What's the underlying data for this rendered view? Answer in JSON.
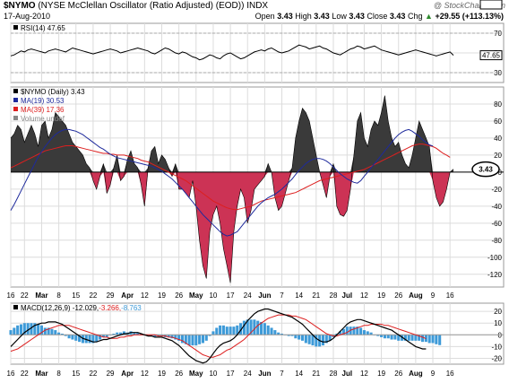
{
  "header": {
    "symbol": "$NYMO",
    "description": "(NYSE McClellan Oscillator (Ratio Adjusted) (EOD))",
    "exchange": "INDX",
    "watermark": "@ StockCharts.com",
    "date": "17-Aug-2010",
    "open_label": "Open",
    "open_value": "3.43",
    "high_label": "High",
    "high_value": "3.43",
    "low_label": "Low",
    "low_value": "3.43",
    "close_label": "Close",
    "close_value": "3.43",
    "chg_label": "Chg",
    "chg_value": "+29.55 (+113.13%)",
    "chg_arrow": "▲"
  },
  "colors": {
    "positive_fill": "#3a3a3a",
    "negative_fill": "#cc3355",
    "ma19": "#1e2a9c",
    "ma39": "#dd1f1f",
    "rsi_line": "#000000",
    "macd_line": "#000000",
    "signal_line": "#dd1f1f",
    "histogram": "#3d9ad8"
  },
  "x_axis": {
    "labels": [
      {
        "i": 0,
        "text": "16"
      },
      {
        "i": 4,
        "text": "22"
      },
      {
        "i": 9,
        "text": "Mar"
      },
      {
        "i": 14,
        "text": "8"
      },
      {
        "i": 19,
        "text": "15"
      },
      {
        "i": 24,
        "text": "22"
      },
      {
        "i": 29,
        "text": "29"
      },
      {
        "i": 34,
        "text": "Apr"
      },
      {
        "i": 39,
        "text": "12"
      },
      {
        "i": 44,
        "text": "19"
      },
      {
        "i": 49,
        "text": "26"
      },
      {
        "i": 54,
        "text": "May"
      },
      {
        "i": 59,
        "text": "10"
      },
      {
        "i": 64,
        "text": "17"
      },
      {
        "i": 69,
        "text": "24"
      },
      {
        "i": 74,
        "text": "Jun"
      },
      {
        "i": 79,
        "text": "7"
      },
      {
        "i": 84,
        "text": "14"
      },
      {
        "i": 89,
        "text": "21"
      },
      {
        "i": 94,
        "text": "28"
      },
      {
        "i": 98,
        "text": "Jul"
      },
      {
        "i": 103,
        "text": "12"
      },
      {
        "i": 108,
        "text": "19"
      },
      {
        "i": 113,
        "text": "26"
      },
      {
        "i": 118,
        "text": "Aug"
      },
      {
        "i": 123,
        "text": "9"
      },
      {
        "i": 128,
        "text": "16"
      }
    ]
  },
  "chart_data": [
    {
      "type": "line",
      "panel": "rsi",
      "legend": "RSI(14)",
      "legend_value": "47.65",
      "ylim": [
        20,
        80
      ],
      "yticks": [
        70,
        50,
        30
      ],
      "ytick_labels": [
        "70",
        "50",
        "30"
      ],
      "overbought": 70,
      "oversold": 30,
      "last_label": "47.65",
      "series": [
        {
          "name": "RSI(14)",
          "values": [
            47,
            48,
            50,
            52,
            51,
            53,
            54,
            53,
            52,
            51,
            50,
            52,
            53,
            54,
            53,
            52,
            51,
            53,
            55,
            54,
            53,
            52,
            51,
            50,
            49,
            50,
            51,
            52,
            53,
            54,
            53,
            52,
            50,
            51,
            52,
            53,
            54,
            55,
            54,
            53,
            52,
            50,
            49,
            51,
            53,
            55,
            54,
            52,
            50,
            49,
            51,
            50,
            48,
            46,
            45,
            43,
            44,
            46,
            48,
            47,
            45,
            44,
            47,
            49,
            50,
            48,
            46,
            44,
            45,
            47,
            49,
            51,
            52,
            53,
            52,
            54,
            55,
            53,
            51,
            50,
            51,
            52,
            54,
            56,
            58,
            57,
            56,
            54,
            55,
            56,
            57,
            55,
            54,
            52,
            50,
            49,
            48,
            50,
            52,
            54,
            55,
            57,
            56,
            54,
            55,
            56,
            57,
            55,
            53,
            52,
            51,
            50,
            49,
            48,
            49,
            50,
            51,
            52,
            53,
            52,
            51,
            50,
            49,
            48,
            47,
            48,
            49,
            50,
            51,
            47.65
          ]
        }
      ]
    },
    {
      "type": "area",
      "panel": "main",
      "legend": [
        "$NYMO (Daily)",
        "MA(19)",
        "MA(39)",
        "Volume undef"
      ],
      "legend_values": [
        "3.43",
        "30.53",
        "17.36",
        ""
      ],
      "ylim": [
        -135,
        100
      ],
      "yticks": [
        80,
        60,
        40,
        20,
        0,
        -20,
        -40,
        -60,
        -80,
        -100,
        -120
      ],
      "ytick_labels": [
        "80",
        "60",
        "40",
        "20",
        "0",
        "-20",
        "-40",
        "-60",
        "-80",
        "-100",
        "-120"
      ],
      "value_labels": {
        "ma19": "30.53",
        "ma39": "17.36",
        "last": "3.43"
      },
      "series": [
        {
          "name": "$NYMO (Daily)",
          "values": [
            40,
            45,
            55,
            50,
            35,
            45,
            55,
            45,
            30,
            55,
            60,
            40,
            50,
            70,
            65,
            60,
            55,
            45,
            35,
            30,
            25,
            20,
            10,
            5,
            -10,
            -20,
            -5,
            10,
            -25,
            -15,
            5,
            20,
            -10,
            -5,
            15,
            25,
            10,
            5,
            -15,
            -40,
            5,
            25,
            30,
            10,
            20,
            15,
            5,
            -5,
            10,
            -20,
            -20,
            -25,
            -30,
            -10,
            -40,
            -80,
            -110,
            -125,
            -70,
            -50,
            -40,
            -60,
            -90,
            -110,
            -130,
            -70,
            -40,
            -20,
            -30,
            -60,
            -45,
            -20,
            -15,
            -10,
            -5,
            10,
            0,
            -30,
            -45,
            -40,
            -25,
            -10,
            5,
            40,
            60,
            75,
            70,
            60,
            40,
            20,
            0,
            -15,
            -30,
            -5,
            10,
            -40,
            -50,
            -52,
            -45,
            -20,
            20,
            60,
            70,
            40,
            30,
            50,
            60,
            55,
            70,
            90,
            60,
            40,
            30,
            35,
            20,
            10,
            5,
            20,
            40,
            60,
            50,
            40,
            30,
            -10,
            -30,
            -40,
            -35,
            -20,
            0,
            3.43
          ]
        },
        {
          "name": "MA(19)",
          "values": [
            -45,
            -38,
            -30,
            -22,
            -14,
            -6,
            2,
            10,
            18,
            24,
            30,
            35,
            40,
            44,
            47,
            49,
            50,
            50,
            49,
            48,
            46,
            44,
            41,
            38,
            35,
            32,
            29,
            27,
            24,
            21,
            19,
            17,
            16,
            15,
            14,
            13,
            12,
            11,
            10,
            9,
            8,
            7,
            5,
            3,
            1,
            -2,
            -5,
            -8,
            -12,
            -16,
            -20,
            -25,
            -30,
            -35,
            -40,
            -45,
            -50,
            -54,
            -58,
            -62,
            -66,
            -70,
            -73,
            -75,
            -74,
            -72,
            -70,
            -65,
            -60,
            -55,
            -50,
            -45,
            -40,
            -36,
            -33,
            -30,
            -28,
            -26,
            -23,
            -20,
            -16,
            -12,
            -8,
            -3,
            2,
            6,
            10,
            13,
            15,
            16,
            16,
            15,
            13,
            10,
            6,
            2,
            -2,
            -5,
            -8,
            -10,
            -12,
            -13,
            -10,
            -5,
            0,
            5,
            10,
            15,
            20,
            25,
            30,
            35,
            40,
            44,
            47,
            49,
            50,
            48,
            45,
            42,
            38,
            35,
            32,
            30.53
          ]
        },
        {
          "name": "MA(39)",
          "values": [
            5,
            7,
            9,
            11,
            13,
            15,
            17,
            19,
            21,
            23,
            25,
            26,
            27,
            28,
            29,
            30,
            31,
            31,
            31,
            30,
            29,
            28,
            27,
            26,
            25,
            24,
            23,
            22,
            22,
            21,
            21,
            20,
            20,
            20,
            19,
            18,
            17,
            16,
            14,
            13,
            12,
            10,
            8,
            6,
            4,
            2,
            0,
            -2,
            -4,
            -6,
            -8,
            -10,
            -13,
            -16,
            -19,
            -22,
            -25,
            -28,
            -31,
            -34,
            -36,
            -38,
            -40,
            -42,
            -43,
            -44,
            -44,
            -43,
            -42,
            -41,
            -40,
            -38,
            -36,
            -34,
            -33,
            -32,
            -31,
            -30,
            -29,
            -28,
            -27,
            -26,
            -25,
            -24,
            -22,
            -20,
            -18,
            -16,
            -14,
            -12,
            -10,
            -9,
            -8,
            -7,
            -6,
            -5,
            -4,
            -3,
            -2,
            -1,
            0,
            1,
            2,
            3,
            5,
            7,
            9,
            11,
            13,
            15,
            17,
            19,
            21,
            23,
            25,
            27,
            29,
            31,
            32,
            33,
            33,
            32,
            31,
            30,
            28,
            25,
            22,
            20,
            17.36
          ]
        }
      ]
    },
    {
      "type": "line",
      "panel": "macd",
      "legend": [
        "MACD(12,26,9)",
        "signal",
        "histogram"
      ],
      "legend_values": [
        "-12.029",
        "-3.266",
        "-8.763"
      ],
      "ylim": [
        -25,
        27
      ],
      "yticks": [
        20,
        10,
        0,
        -10,
        -20
      ],
      "ytick_labels": [
        "20",
        "10",
        "0",
        "-10",
        "-20"
      ],
      "value_labels": {
        "signal": "-3.266",
        "macd": "-12.029"
      },
      "series": [
        {
          "name": "MACD(12,26,9)",
          "values": [
            -10,
            -7,
            -4,
            -1,
            2,
            4,
            6,
            8,
            9,
            10,
            10,
            11,
            11,
            11,
            10,
            9,
            7,
            5,
            3,
            1,
            -1,
            -3,
            -4,
            -5,
            -6,
            -6,
            -5,
            -4,
            -4,
            -3,
            -2,
            -1,
            0,
            1,
            1,
            2,
            2,
            2,
            1,
            0,
            -1,
            -1,
            -2,
            -2,
            -2,
            -3,
            -4,
            -5,
            -7,
            -9,
            -12,
            -15,
            -18,
            -20,
            -22,
            -23,
            -24,
            -23,
            -20,
            -16,
            -12,
            -9,
            -7,
            -6,
            -5,
            -3,
            0,
            4,
            8,
            12,
            15,
            18,
            20,
            21,
            22,
            22,
            21,
            20,
            19,
            18,
            17,
            16,
            15,
            13,
            11,
            9,
            6,
            3,
            0,
            -3,
            -5,
            -6,
            -6,
            -5,
            -3,
            0,
            3,
            6,
            9,
            11,
            12,
            13,
            13,
            12,
            11,
            10,
            9,
            8,
            7,
            6,
            5,
            4,
            2,
            0,
            -2,
            -4,
            -6,
            -8,
            -10,
            -11,
            -12,
            -12.029
          ]
        },
        {
          "name": "signal",
          "values": [
            -14,
            -13,
            -12,
            -10,
            -8,
            -6,
            -4,
            -2,
            0,
            2,
            4,
            5,
            6,
            7,
            8,
            8,
            8,
            8,
            7,
            6,
            5,
            4,
            3,
            2,
            1,
            0,
            -1,
            -2,
            -2,
            -3,
            -3,
            -3,
            -2,
            -2,
            -1,
            -1,
            0,
            0,
            0,
            0,
            0,
            0,
            0,
            -1,
            -1,
            -1,
            -2,
            -2,
            -3,
            -4,
            -5,
            -7,
            -9,
            -11,
            -13,
            -15,
            -17,
            -18,
            -19,
            -19,
            -18,
            -17,
            -15,
            -13,
            -12,
            -10,
            -8,
            -6,
            -4,
            -1,
            2,
            5,
            8,
            10,
            12,
            14,
            15,
            16,
            17,
            17,
            17,
            17,
            16,
            16,
            15,
            14,
            13,
            11,
            9,
            7,
            5,
            3,
            1,
            0,
            -1,
            -1,
            0,
            1,
            2,
            4,
            5,
            6,
            7,
            8,
            8,
            9,
            9,
            9,
            9,
            8,
            8,
            7,
            6,
            5,
            4,
            3,
            2,
            1,
            0,
            -1,
            -2,
            -3.266
          ]
        },
        {
          "name": "histogram",
          "values": [
            4,
            6,
            8,
            9,
            10,
            10,
            10,
            10,
            9,
            8,
            6,
            6,
            5,
            4,
            2,
            1,
            -1,
            -3,
            -4,
            -5,
            -6,
            -7,
            -7,
            -7,
            -7,
            -6,
            -4,
            -2,
            -2,
            0,
            1,
            2,
            2,
            3,
            2,
            3,
            2,
            2,
            1,
            0,
            -1,
            -1,
            -2,
            -1,
            -1,
            -2,
            -2,
            -3,
            -4,
            -5,
            -7,
            -8,
            -9,
            -9,
            -9,
            -8,
            -7,
            -5,
            -1,
            3,
            6,
            8,
            8,
            7,
            7,
            7,
            8,
            10,
            12,
            13,
            13,
            13,
            12,
            11,
            10,
            8,
            6,
            4,
            2,
            1,
            0,
            -1,
            -1,
            -3,
            -4,
            -5,
            -7,
            -8,
            -9,
            -10,
            -10,
            -9,
            -7,
            -5,
            -2,
            1,
            3,
            5,
            7,
            7,
            7,
            7,
            6,
            4,
            3,
            2,
            0,
            -1,
            -2,
            -3,
            -3,
            -4,
            -4,
            -5,
            -5,
            -5,
            -5,
            -5,
            -5,
            -5,
            -6,
            -6,
            -7,
            -7,
            -8,
            -8.763
          ]
        }
      ]
    }
  ]
}
